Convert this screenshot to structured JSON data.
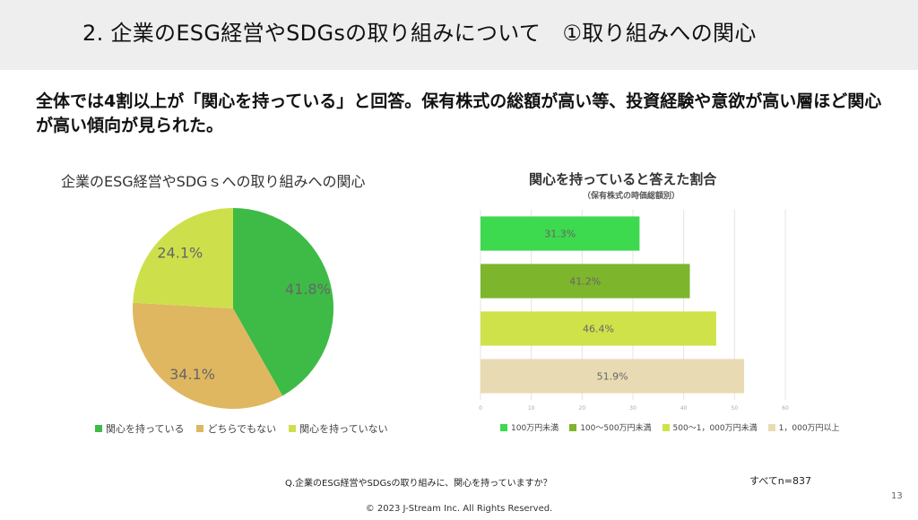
{
  "header": {
    "title": "2. 企業のESG経営やSDGsの取り組みについて　①取り組みへの関心",
    "background": "#eeeeee"
  },
  "headline": "全体では4割以上が「関心を持っている」と回答。保有株式の総額が高い等、投資経験や意欲が高い層ほど関心が高い傾向が見られた。",
  "chart_data": [
    {
      "type": "pie",
      "title": "企業のESG経営やSDGｓへの取り組みへの関心",
      "slices": [
        {
          "label": "関心を持っている",
          "value": 41.8,
          "display": "41.8%",
          "color": "#3dbb46"
        },
        {
          "label": "どちらでもない",
          "value": 34.1,
          "display": "34.1%",
          "color": "#dfb760"
        },
        {
          "label": "関心を持っていない",
          "value": 24.1,
          "display": "24.1%",
          "color": "#cde04c"
        }
      ],
      "start_angle_deg": 90,
      "direction": "clockwise",
      "legend_position": "bottom"
    },
    {
      "type": "bar",
      "orientation": "horizontal",
      "title": "関心を持っていると答えた割合",
      "subtitle": "（保有株式の時価総額別）",
      "categories": [
        "100万円未満",
        "100～500万円未満",
        "500～1，000万円未満",
        "1，000万円以上"
      ],
      "values": [
        31.3,
        41.2,
        46.4,
        51.9
      ],
      "labels": [
        "31.3%",
        "41.2%",
        "46.4%",
        "51.9%"
      ],
      "colors": [
        "#3dd94f",
        "#7db52c",
        "#cfe24a",
        "#e8dbb3"
      ],
      "xlim": [
        0,
        60
      ],
      "x_ticks": [
        0,
        10,
        20,
        30,
        40,
        50,
        60
      ],
      "grid": true,
      "legend_position": "bottom"
    }
  ],
  "footer": {
    "question": "Q.企業のESG経営やSDGsの取り組みに、関心を持っていますか？",
    "sample": "すべてn=837",
    "page_number": "13",
    "copyright": "© 2023 J-Stream Inc. All Rights Reserved."
  }
}
